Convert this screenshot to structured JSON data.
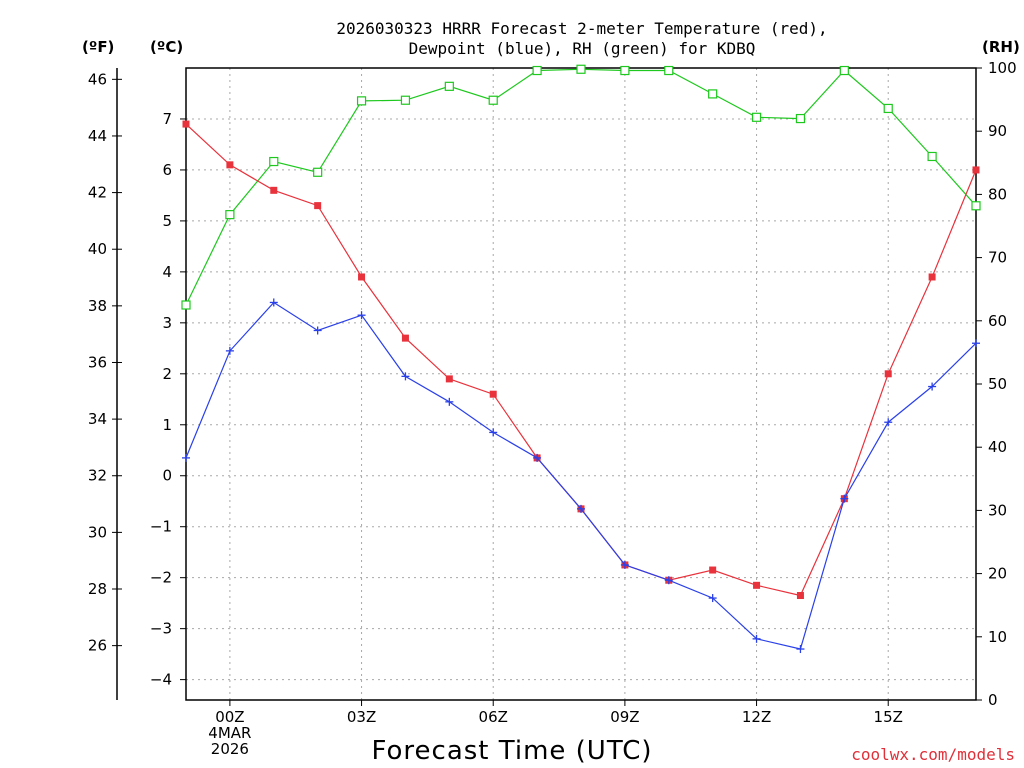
{
  "chart_data": {
    "type": "line",
    "title_line1": "2026030323 HRRR Forecast 2-meter Temperature (red),",
    "title_line2": "Dewpoint (blue), RH (green) for KDBQ",
    "xlabel": "Forecast Time (UTC)",
    "credit": "coolwx.com/models",
    "units": {
      "fahrenheit": "(ºF)",
      "celsius": "(ºC)",
      "rh": "(RH)"
    },
    "x_hours": [
      0,
      1,
      2,
      3,
      4,
      5,
      6,
      7,
      8,
      9,
      10,
      11,
      12,
      13,
      14,
      15,
      16,
      17,
      18
    ],
    "x_tick_labels": [
      {
        "hour": 1,
        "lines": [
          "00Z",
          "4MAR",
          "2026"
        ]
      },
      {
        "hour": 4,
        "lines": [
          "03Z"
        ]
      },
      {
        "hour": 7,
        "lines": [
          "06Z"
        ]
      },
      {
        "hour": 10,
        "lines": [
          "09Z"
        ]
      },
      {
        "hour": 13,
        "lines": [
          "12Z"
        ]
      },
      {
        "hour": 16,
        "lines": [
          "15Z"
        ]
      }
    ],
    "xlim": [
      0,
      18
    ],
    "celsius_axis": {
      "ylim": [
        -4.4,
        8.0
      ],
      "ticks": [
        -4,
        -3,
        -2,
        -1,
        0,
        1,
        2,
        3,
        4,
        5,
        6,
        7
      ]
    },
    "fahrenheit_axis": {
      "ticks": [
        26,
        28,
        30,
        32,
        34,
        36,
        38,
        40,
        42,
        44,
        46
      ]
    },
    "rh_axis": {
      "ylim": [
        0,
        100
      ],
      "ticks": [
        0,
        10,
        20,
        30,
        40,
        50,
        60,
        70,
        80,
        90,
        100
      ]
    },
    "series": [
      {
        "name": "Temperature",
        "unit": "C",
        "color": "#e8323c",
        "values": [
          6.9,
          6.1,
          5.6,
          5.3,
          3.9,
          2.7,
          1.9,
          1.6,
          0.35,
          -0.65,
          -1.75,
          -2.05,
          -1.85,
          -2.15,
          -2.35,
          -0.45,
          2.0,
          3.9,
          6.0
        ]
      },
      {
        "name": "Dewpoint",
        "unit": "C",
        "color": "#2a40e8",
        "values": [
          0.35,
          2.45,
          3.4,
          2.85,
          3.15,
          1.95,
          1.45,
          0.85,
          0.35,
          -0.65,
          -1.75,
          -2.05,
          -2.4,
          -3.2,
          -3.4,
          -0.45,
          1.05,
          1.75,
          2.6
        ]
      },
      {
        "name": "RH",
        "unit": "%",
        "color": "#1ec81e",
        "values": [
          62.5,
          76.8,
          85.2,
          83.5,
          94.8,
          94.9,
          97.1,
          94.9,
          99.6,
          99.8,
          99.6,
          99.6,
          95.9,
          92.2,
          92.0,
          99.6,
          93.6,
          86.0,
          78.2
        ]
      }
    ]
  }
}
